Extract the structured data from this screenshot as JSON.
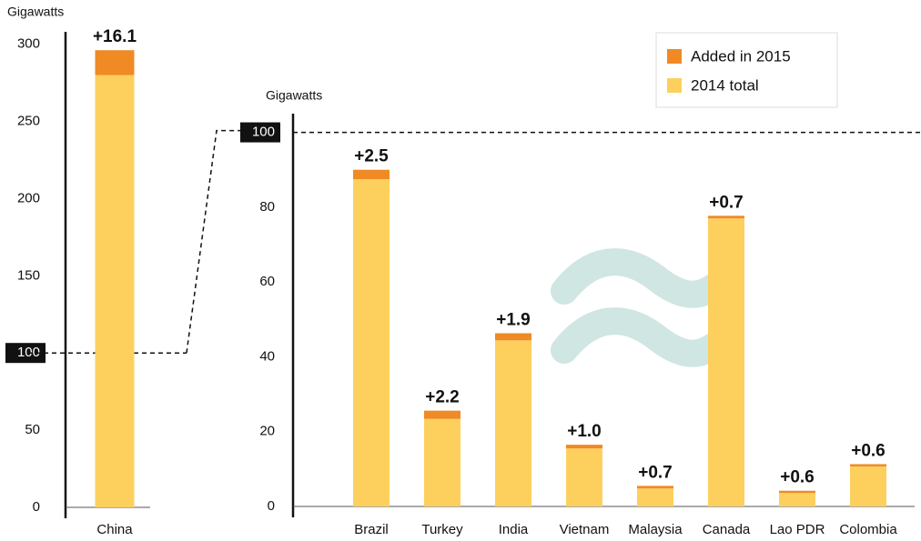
{
  "chart_data": [
    {
      "type": "bar",
      "stacked": true,
      "y_label": "Gigawatts",
      "categories": [
        "China"
      ],
      "series": [
        {
          "name": "Added in 2015",
          "color": "#f08a24",
          "values": [
            16.1
          ],
          "value_labels": [
            "+16.1"
          ]
        },
        {
          "name": "2014 total",
          "color": "#fdd05e",
          "values": [
            280
          ]
        }
      ],
      "ylim": [
        0,
        308
      ],
      "yticks": [
        0,
        50,
        100,
        150,
        200,
        250,
        300
      ],
      "grid": false,
      "reference_line": 100
    },
    {
      "type": "bar",
      "stacked": true,
      "y_label": "Gigawatts",
      "categories": [
        "Brazil",
        "Turkey",
        "India",
        "Vietnam",
        "Malaysia",
        "Canada",
        "Lao PDR",
        "Colombia"
      ],
      "series": [
        {
          "name": "Added in 2015",
          "color": "#f08a24",
          "values": [
            2.5,
            2.2,
            1.9,
            1.0,
            0.7,
            0.7,
            0.6,
            0.6
          ],
          "value_labels": [
            "+2.5",
            "+2.2",
            "+1.9",
            "+1.0",
            "+0.7",
            "+0.7",
            "+0.6",
            "+0.6"
          ]
        },
        {
          "name": "2014 total",
          "color": "#fdd05e",
          "values": [
            87.5,
            23.4,
            44.4,
            15.5,
            4.8,
            77,
            3.6,
            10.7
          ]
        }
      ],
      "ylim": [
        0,
        105
      ],
      "yticks": [
        0,
        20,
        40,
        60,
        80,
        100
      ],
      "grid": false,
      "reference_line": 100,
      "legend": "upper right"
    }
  ]
}
